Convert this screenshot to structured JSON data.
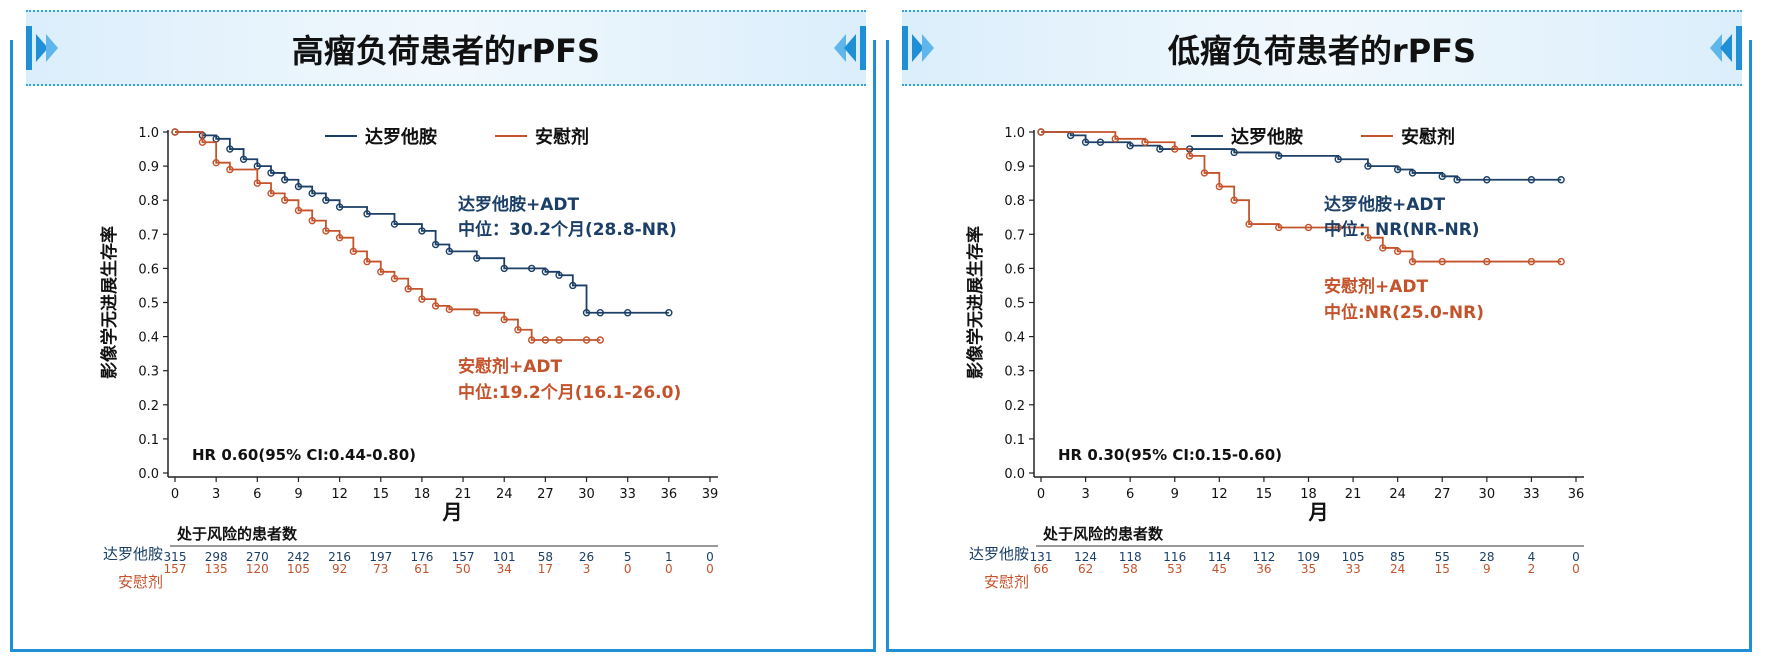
{
  "colors": {
    "darolutamide": "#1b3f66",
    "placebo": "#c4532c",
    "frame": "#1f8fd6"
  },
  "panels": [
    {
      "title": "高瘤负荷患者的rPFS",
      "ylabel": "影像学无进展生存率",
      "xlabel": "月",
      "legend": [
        "达罗他胺",
        "安慰剂"
      ],
      "hr_text": "HR 0.60(95% CI:0.44-0.80)",
      "annot_dar": [
        "达罗他胺+ADT",
        "中位：30.2个月(28.8-NR)"
      ],
      "annot_pla": [
        "安慰剂+ADT",
        "中位:19.2个月(16.1-26.0)"
      ],
      "risk_title": "处于风险的患者数",
      "risk_labels": [
        "达罗他胺",
        "安慰剂"
      ]
    },
    {
      "title": "低瘤负荷患者的rPFS",
      "ylabel": "影像学无进展生存率",
      "xlabel": "月",
      "legend": [
        "达罗他胺",
        "安慰剂"
      ],
      "hr_text": "HR 0.30(95% CI:0.15-0.60)",
      "annot_dar": [
        "达罗他胺+ADT",
        "中位：NR(NR-NR)"
      ],
      "annot_pla": [
        "安慰剂+ADT",
        "中位:NR(25.0-NR)"
      ],
      "risk_title": "处于风险的患者数",
      "risk_labels": [
        "达罗他胺",
        "安慰剂"
      ]
    }
  ],
  "chart_data": [
    {
      "type": "line",
      "title": "高瘤负荷患者的rPFS",
      "xlabel": "月",
      "ylabel": "影像学无进展生存率",
      "xlim": [
        0,
        39
      ],
      "ylim": [
        0,
        1
      ],
      "xticks": [
        0,
        3,
        6,
        9,
        12,
        15,
        18,
        21,
        24,
        27,
        30,
        33,
        36,
        39
      ],
      "yticks": [
        0.0,
        0.1,
        0.2,
        0.3,
        0.4,
        0.5,
        0.6,
        0.7,
        0.8,
        0.9,
        1.0
      ],
      "yticklabels": [
        "0.0",
        "0.1",
        "0.2",
        "0.3",
        "0.4",
        "0.5",
        "0.6",
        "0.7",
        "0.8",
        "0.9",
        "1.0"
      ],
      "legend_position": "top",
      "series": [
        {
          "name": "达罗他胺",
          "x": [
            0,
            2,
            3,
            4,
            5,
            6,
            7,
            8,
            9,
            10,
            11,
            12,
            14,
            16,
            18,
            19,
            20,
            22,
            24,
            26,
            27,
            28,
            29,
            30,
            31,
            33,
            36
          ],
          "y": [
            1.0,
            0.99,
            0.98,
            0.95,
            0.92,
            0.9,
            0.88,
            0.86,
            0.84,
            0.82,
            0.8,
            0.78,
            0.76,
            0.73,
            0.71,
            0.67,
            0.65,
            0.63,
            0.6,
            0.6,
            0.59,
            0.58,
            0.55,
            0.47,
            0.47,
            0.47,
            0.47
          ]
        },
        {
          "name": "安慰剂",
          "x": [
            0,
            2,
            3,
            4,
            6,
            7,
            8,
            9,
            10,
            11,
            12,
            13,
            14,
            15,
            16,
            17,
            18,
            19,
            20,
            22,
            24,
            25,
            26,
            27,
            28,
            30,
            31
          ],
          "y": [
            1.0,
            0.97,
            0.91,
            0.89,
            0.85,
            0.82,
            0.8,
            0.77,
            0.74,
            0.71,
            0.69,
            0.65,
            0.62,
            0.59,
            0.57,
            0.54,
            0.51,
            0.49,
            0.48,
            0.47,
            0.45,
            0.42,
            0.39,
            0.39,
            0.39,
            0.39,
            0.39
          ]
        }
      ],
      "risk_table": {
        "times": [
          0,
          3,
          6,
          9,
          12,
          15,
          18,
          21,
          24,
          27,
          30,
          33,
          36,
          39
        ],
        "rows": [
          {
            "name": "达罗他胺",
            "values": [
              315,
              298,
              270,
              242,
              216,
              197,
              176,
              157,
              101,
              58,
              26,
              5,
              1,
              0
            ]
          },
          {
            "name": "安慰剂",
            "values": [
              157,
              135,
              120,
              105,
              92,
              73,
              61,
              50,
              34,
              17,
              3,
              0,
              0,
              0
            ]
          }
        ]
      }
    },
    {
      "type": "line",
      "title": "低瘤负荷患者的rPFS",
      "xlabel": "月",
      "ylabel": "影像学无进展生存率",
      "xlim": [
        0,
        36
      ],
      "ylim": [
        0,
        1
      ],
      "xticks": [
        0,
        3,
        6,
        9,
        12,
        15,
        18,
        21,
        24,
        27,
        30,
        33,
        36
      ],
      "yticks": [
        0.0,
        0.1,
        0.2,
        0.3,
        0.4,
        0.5,
        0.6,
        0.7,
        0.8,
        0.9,
        1.0
      ],
      "yticklabels": [
        "0.0",
        "0.1",
        "0.2",
        "0.3",
        "0.4",
        "0.5",
        "0.6",
        "0.7",
        "0.8",
        "0.9",
        "1.0"
      ],
      "legend_position": "top",
      "series": [
        {
          "name": "达罗他胺",
          "x": [
            0,
            2,
            3,
            4,
            6,
            8,
            10,
            13,
            16,
            20,
            22,
            24,
            25,
            27,
            28,
            30,
            33,
            35
          ],
          "y": [
            1.0,
            0.99,
            0.97,
            0.97,
            0.96,
            0.95,
            0.95,
            0.94,
            0.93,
            0.92,
            0.9,
            0.89,
            0.88,
            0.87,
            0.86,
            0.86,
            0.86,
            0.86
          ]
        },
        {
          "name": "安慰剂",
          "x": [
            0,
            5,
            7,
            9,
            10,
            11,
            12,
            13,
            14,
            16,
            18,
            20,
            22,
            23,
            24,
            25,
            27,
            30,
            33,
            35
          ],
          "y": [
            1.0,
            0.98,
            0.97,
            0.95,
            0.93,
            0.88,
            0.84,
            0.8,
            0.73,
            0.72,
            0.72,
            0.72,
            0.69,
            0.66,
            0.65,
            0.62,
            0.62,
            0.62,
            0.62,
            0.62
          ]
        }
      ],
      "risk_table": {
        "times": [
          0,
          3,
          6,
          9,
          12,
          15,
          18,
          21,
          24,
          27,
          30,
          33,
          36
        ],
        "rows": [
          {
            "name": "达罗他胺",
            "values": [
              131,
              124,
              118,
              116,
              114,
              112,
              109,
              105,
              85,
              55,
              28,
              4,
              0
            ]
          },
          {
            "name": "安慰剂",
            "values": [
              66,
              62,
              58,
              53,
              45,
              36,
              35,
              33,
              24,
              15,
              9,
              2,
              0
            ]
          }
        ]
      }
    }
  ]
}
